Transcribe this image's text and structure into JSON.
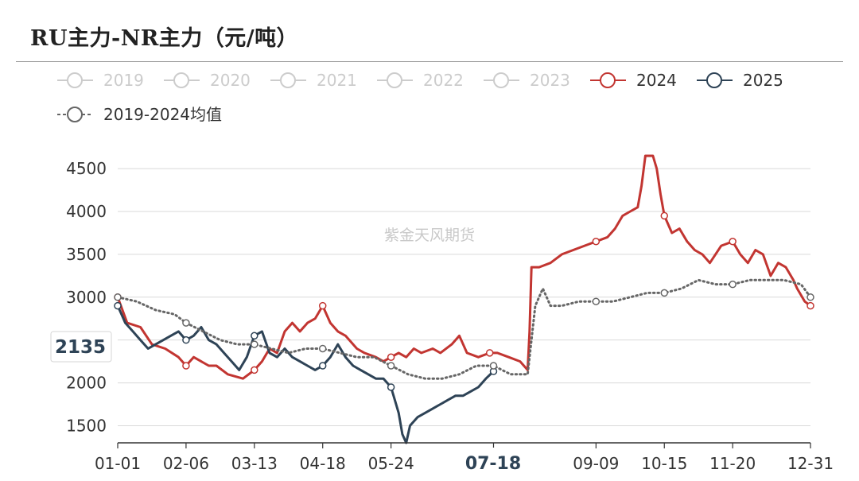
{
  "title": "RU主力-NR主力（元/吨）",
  "watermark": "紫金天风期货",
  "chart_data": {
    "type": "line",
    "title": "RU主力-NR主力（元/吨）",
    "xlabel": "",
    "ylabel": "",
    "x_tick_labels": [
      "01-01",
      "02-06",
      "03-13",
      "04-18",
      "05-24",
      "07-18",
      "09-09",
      "10-15",
      "11-20",
      "12-31"
    ],
    "x_tick_days": [
      0,
      36,
      72,
      108,
      144,
      198,
      252,
      288,
      324,
      365
    ],
    "y_ticks": [
      1500,
      2000,
      2500,
      3000,
      3500,
      4000,
      4500
    ],
    "ylim": [
      1300,
      4650
    ],
    "grid": "horizontal",
    "legend_position": "top",
    "tooltip": {
      "y_value": "2135",
      "x_value": "07-18"
    },
    "series": [
      {
        "name": "2019",
        "color": "#cccccc",
        "active": false,
        "x": [],
        "y": []
      },
      {
        "name": "2020",
        "color": "#cccccc",
        "active": false,
        "x": [],
        "y": []
      },
      {
        "name": "2021",
        "color": "#cccccc",
        "active": false,
        "x": [],
        "y": []
      },
      {
        "name": "2022",
        "color": "#cccccc",
        "active": false,
        "x": [],
        "y": []
      },
      {
        "name": "2023",
        "color": "#cccccc",
        "active": false,
        "x": [],
        "y": []
      },
      {
        "name": "2024",
        "color": "#c23531",
        "active": true,
        "style": "solid",
        "x": [
          0,
          5,
          12,
          18,
          25,
          32,
          36,
          40,
          48,
          52,
          58,
          66,
          72,
          76,
          80,
          84,
          88,
          92,
          96,
          100,
          104,
          108,
          112,
          116,
          120,
          126,
          130,
          136,
          140,
          144,
          148,
          152,
          156,
          160,
          166,
          170,
          176,
          180,
          184,
          190,
          196,
          200,
          206,
          212,
          216,
          217,
          218,
          222,
          228,
          234,
          240,
          246,
          252,
          258,
          262,
          266,
          270,
          274,
          276,
          278,
          280,
          282,
          284,
          286,
          288,
          292,
          296,
          300,
          304,
          308,
          312,
          318,
          324,
          328,
          332,
          336,
          340,
          344,
          348,
          352,
          356,
          358,
          362,
          365
        ],
        "y": [
          3000,
          2700,
          2650,
          2450,
          2400,
          2300,
          2200,
          2300,
          2200,
          2200,
          2100,
          2050,
          2150,
          2250,
          2400,
          2350,
          2600,
          2700,
          2600,
          2700,
          2750,
          2900,
          2700,
          2600,
          2550,
          2400,
          2350,
          2300,
          2250,
          2300,
          2350,
          2300,
          2400,
          2350,
          2400,
          2350,
          2450,
          2550,
          2350,
          2300,
          2350,
          2350,
          2300,
          2250,
          2150,
          2600,
          3350,
          3350,
          3400,
          3500,
          3550,
          3600,
          3650,
          3700,
          3800,
          3950,
          4000,
          4050,
          4300,
          4650,
          4650,
          4650,
          4500,
          4200,
          3950,
          3750,
          3800,
          3650,
          3550,
          3500,
          3400,
          3600,
          3650,
          3500,
          3400,
          3550,
          3500,
          3250,
          3400,
          3350,
          3200,
          3100,
          2950,
          2900
        ]
      },
      {
        "name": "2025",
        "color": "#2e4356",
        "active": true,
        "style": "solid",
        "x": [
          0,
          2,
          4,
          8,
          12,
          16,
          20,
          24,
          28,
          32,
          36,
          40,
          44,
          48,
          52,
          56,
          60,
          64,
          68,
          72,
          76,
          80,
          84,
          88,
          92,
          96,
          100,
          104,
          108,
          112,
          116,
          120,
          124,
          128,
          132,
          136,
          140,
          144,
          146,
          148,
          150,
          152,
          154,
          158,
          162,
          166,
          170,
          174,
          178,
          182,
          186,
          190,
          194,
          198
        ],
        "y": [
          2900,
          2800,
          2700,
          2600,
          2500,
          2400,
          2450,
          2500,
          2550,
          2600,
          2500,
          2550,
          2650,
          2500,
          2450,
          2350,
          2250,
          2150,
          2300,
          2550,
          2600,
          2350,
          2300,
          2400,
          2300,
          2250,
          2200,
          2150,
          2200,
          2300,
          2450,
          2300,
          2200,
          2150,
          2100,
          2050,
          2050,
          1950,
          1800,
          1650,
          1400,
          1300,
          1500,
          1600,
          1650,
          1700,
          1750,
          1800,
          1850,
          1850,
          1900,
          1950,
          2050,
          2135
        ]
      },
      {
        "name": "2019-2024均值",
        "color": "#666666",
        "active": true,
        "style": "dotted",
        "x": [
          0,
          10,
          20,
          30,
          36,
          45,
          54,
          63,
          72,
          81,
          90,
          99,
          108,
          117,
          126,
          135,
          144,
          153,
          162,
          171,
          180,
          189,
          198,
          207,
          216,
          220,
          224,
          228,
          234,
          243,
          252,
          261,
          270,
          279,
          288,
          297,
          306,
          315,
          324,
          333,
          342,
          351,
          360,
          365
        ],
        "y": [
          3000,
          2950,
          2850,
          2800,
          2700,
          2600,
          2500,
          2450,
          2450,
          2400,
          2350,
          2400,
          2400,
          2350,
          2300,
          2300,
          2200,
          2100,
          2050,
          2050,
          2100,
          2200,
          2200,
          2100,
          2100,
          2900,
          3100,
          2900,
          2900,
          2950,
          2950,
          2950,
          3000,
          3050,
          3050,
          3100,
          3200,
          3150,
          3150,
          3200,
          3200,
          3200,
          3150,
          3000
        ]
      }
    ]
  }
}
